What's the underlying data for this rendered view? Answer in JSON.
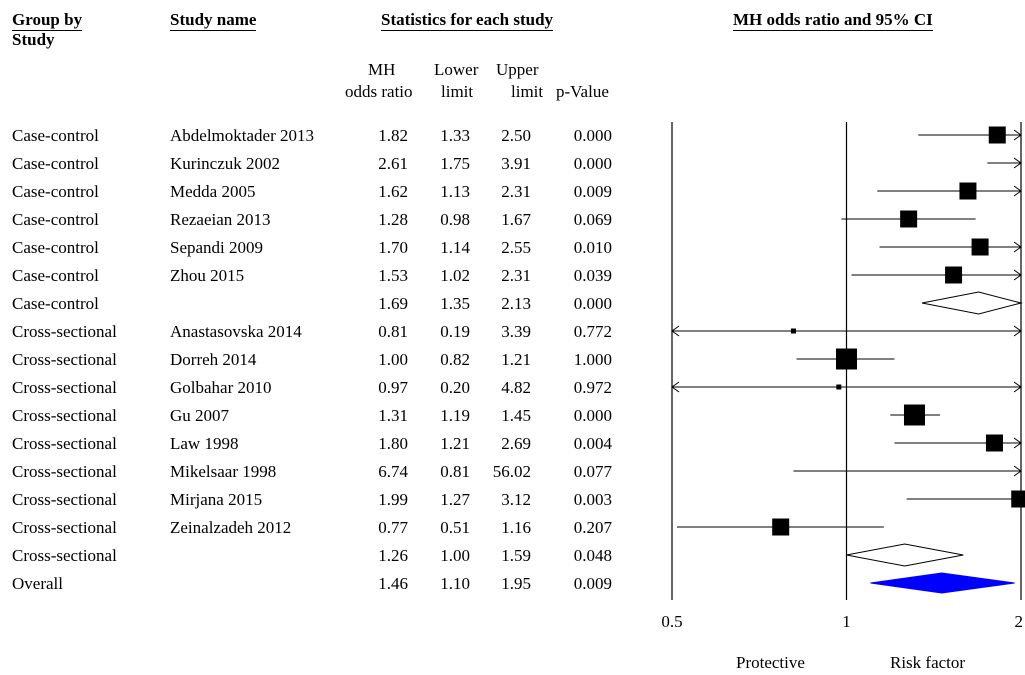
{
  "headers": {
    "group_by": "Group by",
    "study_line2": "Study",
    "study_name": "Study name",
    "stats": "Statistics for each study",
    "plot": "MH odds ratio and 95% CI",
    "col_or_1": "MH",
    "col_or_2": "odds ratio",
    "col_lower_1": "Lower",
    "col_lower_2": "limit",
    "col_upper_1": "Upper",
    "col_upper_2": "limit",
    "col_p": "p-Value"
  },
  "rows": [
    {
      "group": "Case-control",
      "study": "Abdelmoktader 2013",
      "or": "1.82",
      "lower": "1.33",
      "upper": "2.50",
      "p": "0.000"
    },
    {
      "group": "Case-control",
      "study": "Kurinczuk 2002",
      "or": "2.61",
      "lower": "1.75",
      "upper": "3.91",
      "p": "0.000"
    },
    {
      "group": "Case-control",
      "study": "Medda 2005",
      "or": "1.62",
      "lower": "1.13",
      "upper": "2.31",
      "p": "0.009"
    },
    {
      "group": "Case-control",
      "study": "Rezaeian 2013",
      "or": "1.28",
      "lower": "0.98",
      "upper": "1.67",
      "p": "0.069"
    },
    {
      "group": "Case-control",
      "study": "Sepandi 2009",
      "or": "1.70",
      "lower": "1.14",
      "upper": "2.55",
      "p": "0.010"
    },
    {
      "group": "Case-control",
      "study": "Zhou 2015",
      "or": "1.53",
      "lower": "1.02",
      "upper": "2.31",
      "p": "0.039"
    },
    {
      "group": "Case-control",
      "study": "",
      "or": "1.69",
      "lower": "1.35",
      "upper": "2.13",
      "p": "0.000"
    },
    {
      "group": "Cross-sectional",
      "study": "Anastasovska 2014",
      "or": "0.81",
      "lower": "0.19",
      "upper": "3.39",
      "p": "0.772"
    },
    {
      "group": "Cross-sectional",
      "study": "Dorreh 2014",
      "or": "1.00",
      "lower": "0.82",
      "upper": "1.21",
      "p": "1.000"
    },
    {
      "group": "Cross-sectional",
      "study": "Golbahar 2010",
      "or": "0.97",
      "lower": "0.20",
      "upper": "4.82",
      "p": "0.972"
    },
    {
      "group": "Cross-sectional",
      "study": "Gu 2007",
      "or": "1.31",
      "lower": "1.19",
      "upper": "1.45",
      "p": "0.000"
    },
    {
      "group": "Cross-sectional",
      "study": "Law 1998",
      "or": "1.80",
      "lower": "1.21",
      "upper": "2.69",
      "p": "0.004"
    },
    {
      "group": "Cross-sectional",
      "study": "Mikelsaar 1998",
      "or": "6.74",
      "lower": "0.81",
      "upper": "56.02",
      "p": "0.077"
    },
    {
      "group": "Cross-sectional",
      "study": "Mirjana 2015",
      "or": "1.99",
      "lower": "1.27",
      "upper": "3.12",
      "p": "0.003"
    },
    {
      "group": "Cross-sectional",
      "study": "Zeinalzadeh 2012",
      "or": "0.77",
      "lower": "0.51",
      "upper": "1.16",
      "p": "0.207"
    },
    {
      "group": "Cross-sectional",
      "study": "",
      "or": "1.26",
      "lower": "1.00",
      "upper": "1.59",
      "p": "0.048"
    },
    {
      "group": "Overall",
      "study": "",
      "or": "1.46",
      "lower": "1.10",
      "upper": "1.95",
      "p": "0.009"
    }
  ],
  "axis": {
    "tick_labels": [
      "0.5",
      "1",
      "2"
    ],
    "left_label": "Protective",
    "right_label": "Risk factor"
  },
  "chart_data": {
    "type": "forest",
    "title": "MH odds ratio and 95% CI",
    "scale": "log",
    "xlim": [
      0.5,
      2
    ],
    "xticks": [
      0.5,
      1,
      2
    ],
    "reference_line": 1,
    "series": [
      {
        "label": "Abdelmoktader 2013",
        "or": 1.82,
        "lower": 1.33,
        "upper": 2.5,
        "weight": 4,
        "kind": "study"
      },
      {
        "label": "Kurinczuk 2002",
        "or": 2.61,
        "lower": 1.75,
        "upper": 3.91,
        "weight": 3,
        "kind": "study"
      },
      {
        "label": "Medda 2005",
        "or": 1.62,
        "lower": 1.13,
        "upper": 2.31,
        "weight": 4,
        "kind": "study"
      },
      {
        "label": "Rezaeian 2013",
        "or": 1.28,
        "lower": 0.98,
        "upper": 1.67,
        "weight": 4,
        "kind": "study"
      },
      {
        "label": "Sepandi 2009",
        "or": 1.7,
        "lower": 1.14,
        "upper": 2.55,
        "weight": 4,
        "kind": "study"
      },
      {
        "label": "Zhou 2015",
        "or": 1.53,
        "lower": 1.02,
        "upper": 2.31,
        "weight": 4,
        "kind": "study"
      },
      {
        "label": "Case-control",
        "or": 1.69,
        "lower": 1.35,
        "upper": 2.13,
        "kind": "subtotal"
      },
      {
        "label": "Anastasovska 2014",
        "or": 0.81,
        "lower": 0.19,
        "upper": 3.39,
        "weight": 1,
        "kind": "study"
      },
      {
        "label": "Dorreh 2014",
        "or": 1.0,
        "lower": 0.82,
        "upper": 1.21,
        "weight": 5,
        "kind": "study"
      },
      {
        "label": "Golbahar 2010",
        "or": 0.97,
        "lower": 0.2,
        "upper": 4.82,
        "weight": 1,
        "kind": "study"
      },
      {
        "label": "Gu 2007",
        "or": 1.31,
        "lower": 1.19,
        "upper": 1.45,
        "weight": 5,
        "kind": "study"
      },
      {
        "label": "Law 1998",
        "or": 1.8,
        "lower": 1.21,
        "upper": 2.69,
        "weight": 4,
        "kind": "study"
      },
      {
        "label": "Mikelsaar 1998",
        "or": 6.74,
        "lower": 0.81,
        "upper": 56.02,
        "weight": 1,
        "kind": "study"
      },
      {
        "label": "Mirjana 2015",
        "or": 1.99,
        "lower": 1.27,
        "upper": 3.12,
        "weight": 4,
        "kind": "study"
      },
      {
        "label": "Zeinalzadeh 2012",
        "or": 0.77,
        "lower": 0.51,
        "upper": 1.16,
        "weight": 4,
        "kind": "study"
      },
      {
        "label": "Cross-sectional",
        "or": 1.26,
        "lower": 1.0,
        "upper": 1.59,
        "kind": "subtotal"
      },
      {
        "label": "Overall",
        "or": 1.46,
        "lower": 1.1,
        "upper": 1.95,
        "kind": "overall"
      }
    ],
    "colors": {
      "overall_fill": "#0000ff",
      "marker": "#000000",
      "subtotal_fill": "#ffffff"
    }
  }
}
